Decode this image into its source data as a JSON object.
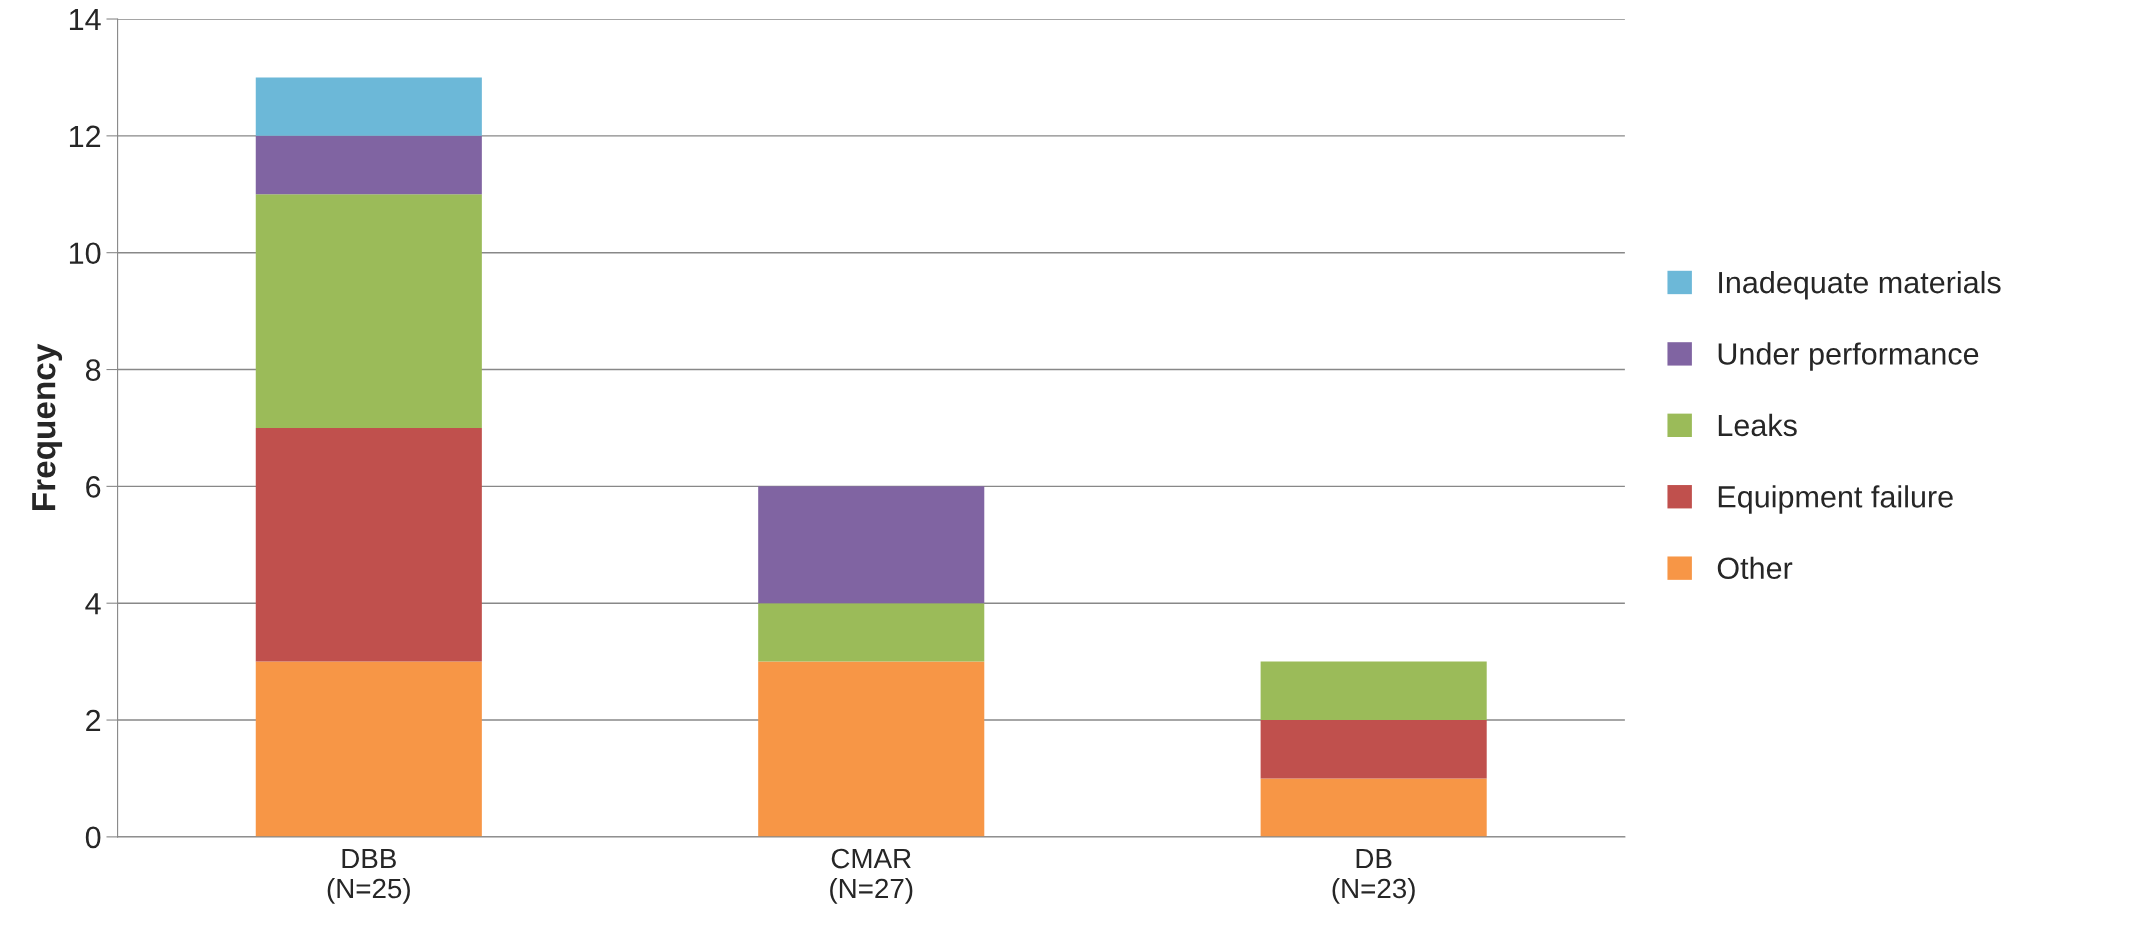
{
  "chart_data": {
    "type": "bar",
    "stacked": true,
    "ylabel": "Frequency",
    "categories": [
      "DBB\n(N=25)",
      "CMAR\n(N=27)",
      "DB\n(N=23)"
    ],
    "series": [
      {
        "name": "Other",
        "color": "#f79646",
        "values": [
          3,
          3,
          1
        ]
      },
      {
        "name": "Equipment failure",
        "color": "#c0504d",
        "values": [
          4,
          0,
          1
        ]
      },
      {
        "name": "Leaks",
        "color": "#9bbb59",
        "values": [
          4,
          1,
          1
        ]
      },
      {
        "name": "Under performance",
        "color": "#8064a2",
        "values": [
          1,
          2,
          0
        ]
      },
      {
        "name": "Inadequate materials",
        "color": "#6cb8d8",
        "values": [
          1,
          0,
          0
        ]
      }
    ],
    "ylim": [
      0,
      14
    ],
    "yticks": [
      0,
      2,
      4,
      6,
      8,
      10,
      12,
      14
    ],
    "grid": "y",
    "legend": "right"
  }
}
